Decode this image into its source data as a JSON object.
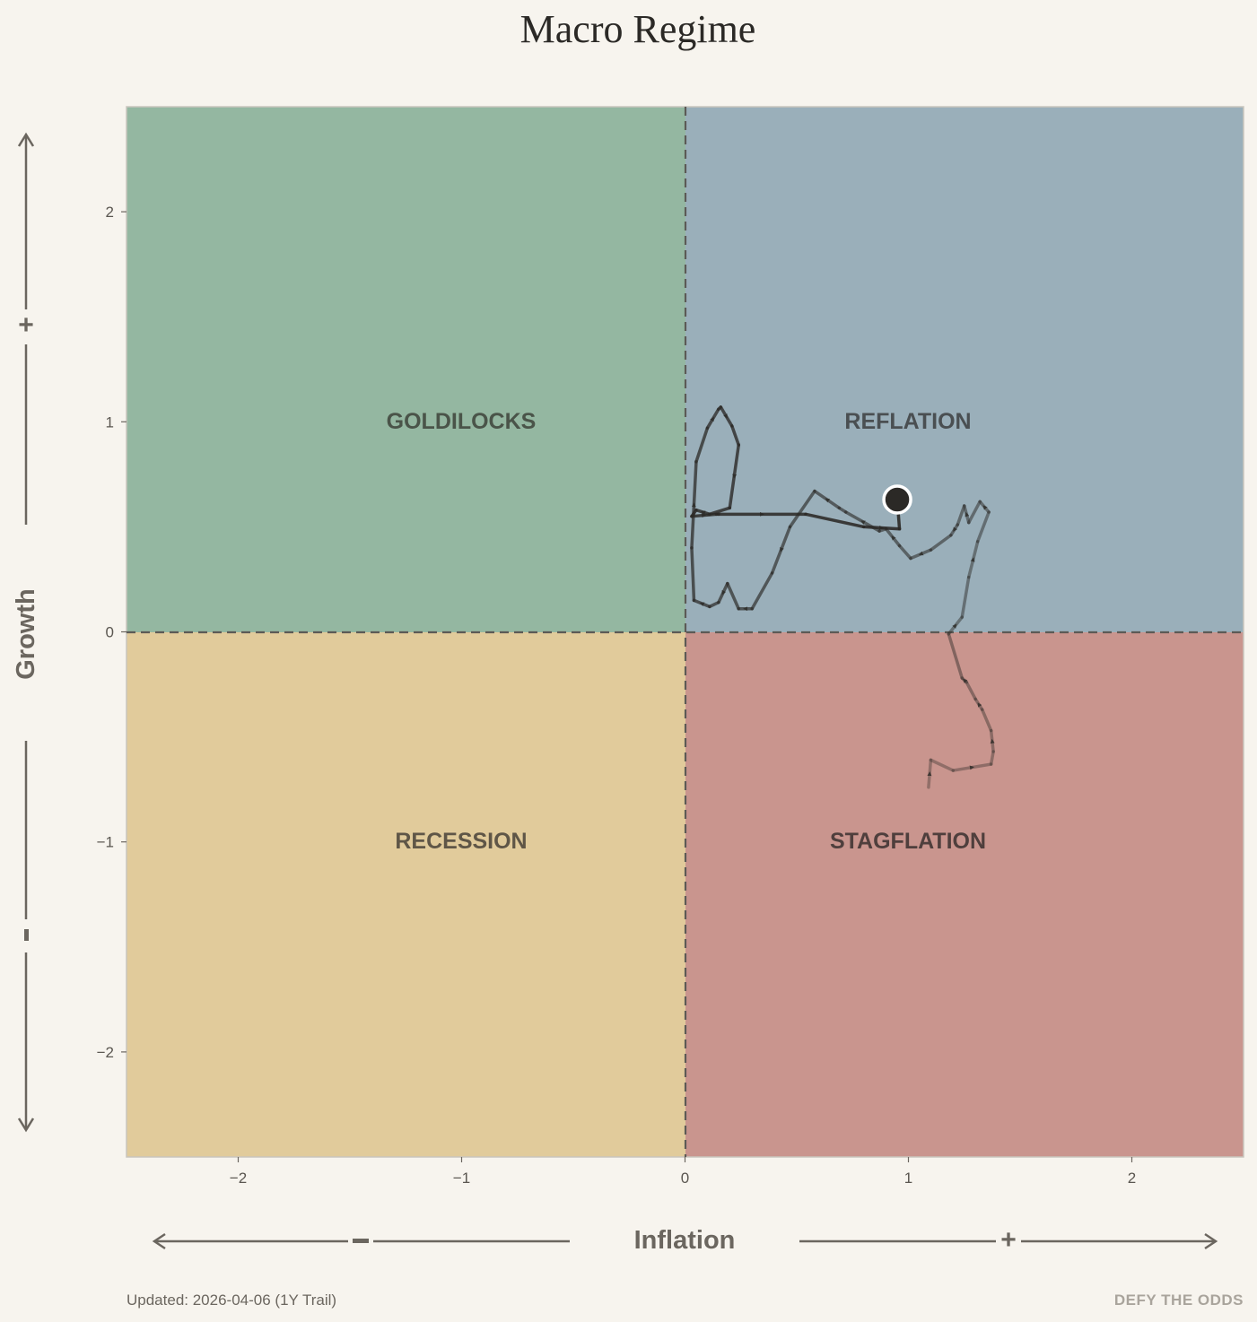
{
  "title": "Macro Regime",
  "footer": {
    "updated": "Updated: 2026-04-06 (1Y Trail)",
    "brand": "DEFY THE ODDS"
  },
  "axes": {
    "x_title": "Inflation",
    "y_title": "Growth",
    "x_minus_sign": "–",
    "x_plus_sign": "+",
    "y_plus_sign": "+",
    "y_minus_sign": "–",
    "x_tick_labels": [
      "−2",
      "−1",
      "0",
      "1",
      "2"
    ],
    "y_tick_labels": [
      "2",
      "1",
      "0",
      "−1",
      "−2"
    ]
  },
  "quadrants": {
    "goldilocks": "GOLDILOCKS",
    "reflation": "REFLATION",
    "recession": "RECESSION",
    "stagflation": "STAGFLATION"
  },
  "colors": {
    "background": "#f7f4ee",
    "goldilocks": "#94b7a1",
    "reflation": "#9aafba",
    "recession": "#e1cb9b",
    "stagflation": "#c9958e",
    "trail": "#2b2926",
    "current_point": "#2b2926"
  },
  "chart_data": {
    "type": "scatter",
    "title": "Macro Regime",
    "xlabel": "Inflation",
    "ylabel": "Growth",
    "xlim": [
      -2.5,
      2.5
    ],
    "ylim": [
      -2.5,
      2.5
    ],
    "x_ticks": [
      -2,
      -1,
      0,
      1,
      2
    ],
    "y_ticks": [
      -2,
      -1,
      0,
      1,
      2
    ],
    "grid": false,
    "quadrant_dividers": {
      "x": 0,
      "y": 0,
      "style": "dashed"
    },
    "trail": {
      "x": [
        1.09,
        1.1,
        1.2,
        1.37,
        1.38,
        1.37,
        1.33,
        1.3,
        1.26,
        1.24,
        1.18,
        1.24,
        1.27,
        1.31,
        1.36,
        1.32,
        1.27,
        1.25,
        1.22,
        1.19,
        1.1,
        1.01,
        0.96,
        0.9,
        0.87,
        0.72,
        0.69,
        0.58,
        0.47,
        0.39,
        0.3,
        0.24,
        0.19,
        0.15,
        0.11,
        0.04,
        0.03,
        0.05,
        0.1,
        0.15,
        0.16,
        0.21,
        0.24,
        0.2,
        0.11,
        0.05,
        0.03,
        0.14,
        0.15,
        0.54,
        0.8,
        0.96,
        0.95
      ],
      "y": [
        -0.74,
        -0.61,
        -0.66,
        -0.63,
        -0.57,
        -0.47,
        -0.37,
        -0.32,
        -0.24,
        -0.22,
        -0.01,
        0.07,
        0.26,
        0.43,
        0.57,
        0.62,
        0.52,
        0.6,
        0.51,
        0.46,
        0.39,
        0.35,
        0.41,
        0.49,
        0.48,
        0.57,
        0.59,
        0.67,
        0.5,
        0.28,
        0.11,
        0.11,
        0.23,
        0.14,
        0.12,
        0.15,
        0.4,
        0.81,
        0.97,
        1.06,
        1.07,
        0.98,
        0.89,
        0.59,
        0.56,
        0.58,
        0.55,
        0.56,
        0.56,
        0.56,
        0.5,
        0.49,
        0.63
      ]
    },
    "current_point": {
      "x": 0.95,
      "y": 0.63
    }
  }
}
